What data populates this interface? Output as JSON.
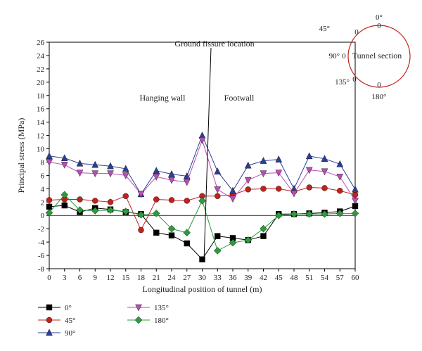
{
  "chart_data": {
    "type": "line",
    "xlabel": "Longitudinal position of tunnel (m)",
    "ylabel": "Principal stress (MPa)",
    "xlim": [
      0,
      60
    ],
    "ylim": [
      -8,
      26
    ],
    "x": [
      0,
      3,
      6,
      9,
      12,
      15,
      18,
      21,
      24,
      27,
      30,
      33,
      36,
      39,
      42,
      45,
      48,
      51,
      54,
      57,
      60
    ],
    "xticks": [
      0,
      3,
      6,
      9,
      12,
      15,
      18,
      21,
      24,
      27,
      30,
      33,
      36,
      39,
      42,
      45,
      48,
      51,
      54,
      57,
      60
    ],
    "yticks": [
      -8,
      -6,
      -4,
      -2,
      0,
      2,
      4,
      6,
      8,
      10,
      12,
      14,
      16,
      18,
      20,
      22,
      24,
      26
    ],
    "grid": false,
    "legend_position": "bottom-left",
    "series": [
      {
        "name": "0°",
        "color": "#000000",
        "marker": "square",
        "values": [
          1.3,
          1.5,
          0.5,
          1.1,
          0.9,
          0.5,
          0.2,
          -2.6,
          -3.0,
          -4.2,
          -6.6,
          -3.1,
          -3.4,
          -3.7,
          -3.1,
          0.2,
          0.2,
          0.3,
          0.4,
          0.6,
          1.4
        ]
      },
      {
        "name": "45°",
        "color": "#c0231e",
        "marker": "circle",
        "values": [
          2.3,
          2.4,
          2.4,
          2.2,
          2.0,
          2.9,
          -2.2,
          2.4,
          2.3,
          2.2,
          2.9,
          2.9,
          3.1,
          3.9,
          4.0,
          4.0,
          3.6,
          4.2,
          4.1,
          3.7,
          3.1
        ]
      },
      {
        "name": "90°",
        "color": "#2c3f93",
        "marker": "triangle-up",
        "values": [
          8.9,
          8.6,
          7.8,
          7.6,
          7.4,
          7.0,
          3.2,
          6.7,
          6.2,
          5.9,
          12.0,
          6.6,
          3.7,
          7.5,
          8.2,
          8.4,
          4.0,
          8.9,
          8.5,
          7.7,
          3.9
        ]
      },
      {
        "name": "135°",
        "color": "#b74fb4",
        "marker": "triangle-down",
        "values": [
          8.0,
          7.6,
          6.4,
          6.3,
          6.3,
          6.0,
          3.2,
          5.8,
          5.3,
          5.0,
          11.3,
          3.9,
          2.5,
          5.3,
          6.3,
          6.4,
          3.3,
          6.8,
          6.6,
          5.8,
          2.2
        ]
      },
      {
        "name": "180°",
        "color": "#2e9a3e",
        "marker": "diamond",
        "values": [
          0.4,
          3.1,
          0.8,
          0.7,
          0.8,
          0.6,
          0.1,
          0.3,
          -2.0,
          -2.6,
          2.2,
          -5.3,
          -4.1,
          -3.7,
          -2.0,
          0.0,
          0.2,
          0.2,
          0.2,
          0.3,
          0.3
        ]
      }
    ],
    "annotations": {
      "fissure_label": "Ground fissure location",
      "hanging_wall": "Hanging wall",
      "footwall": "Footwall"
    },
    "inset": {
      "label": "Tunnel section",
      "circle_color": "#c0231e",
      "angle_labels": [
        "0°",
        "45°",
        "90°",
        "135°",
        "180°"
      ],
      "zero_marks": [
        "0",
        "0",
        "0",
        "0",
        "0"
      ]
    }
  }
}
